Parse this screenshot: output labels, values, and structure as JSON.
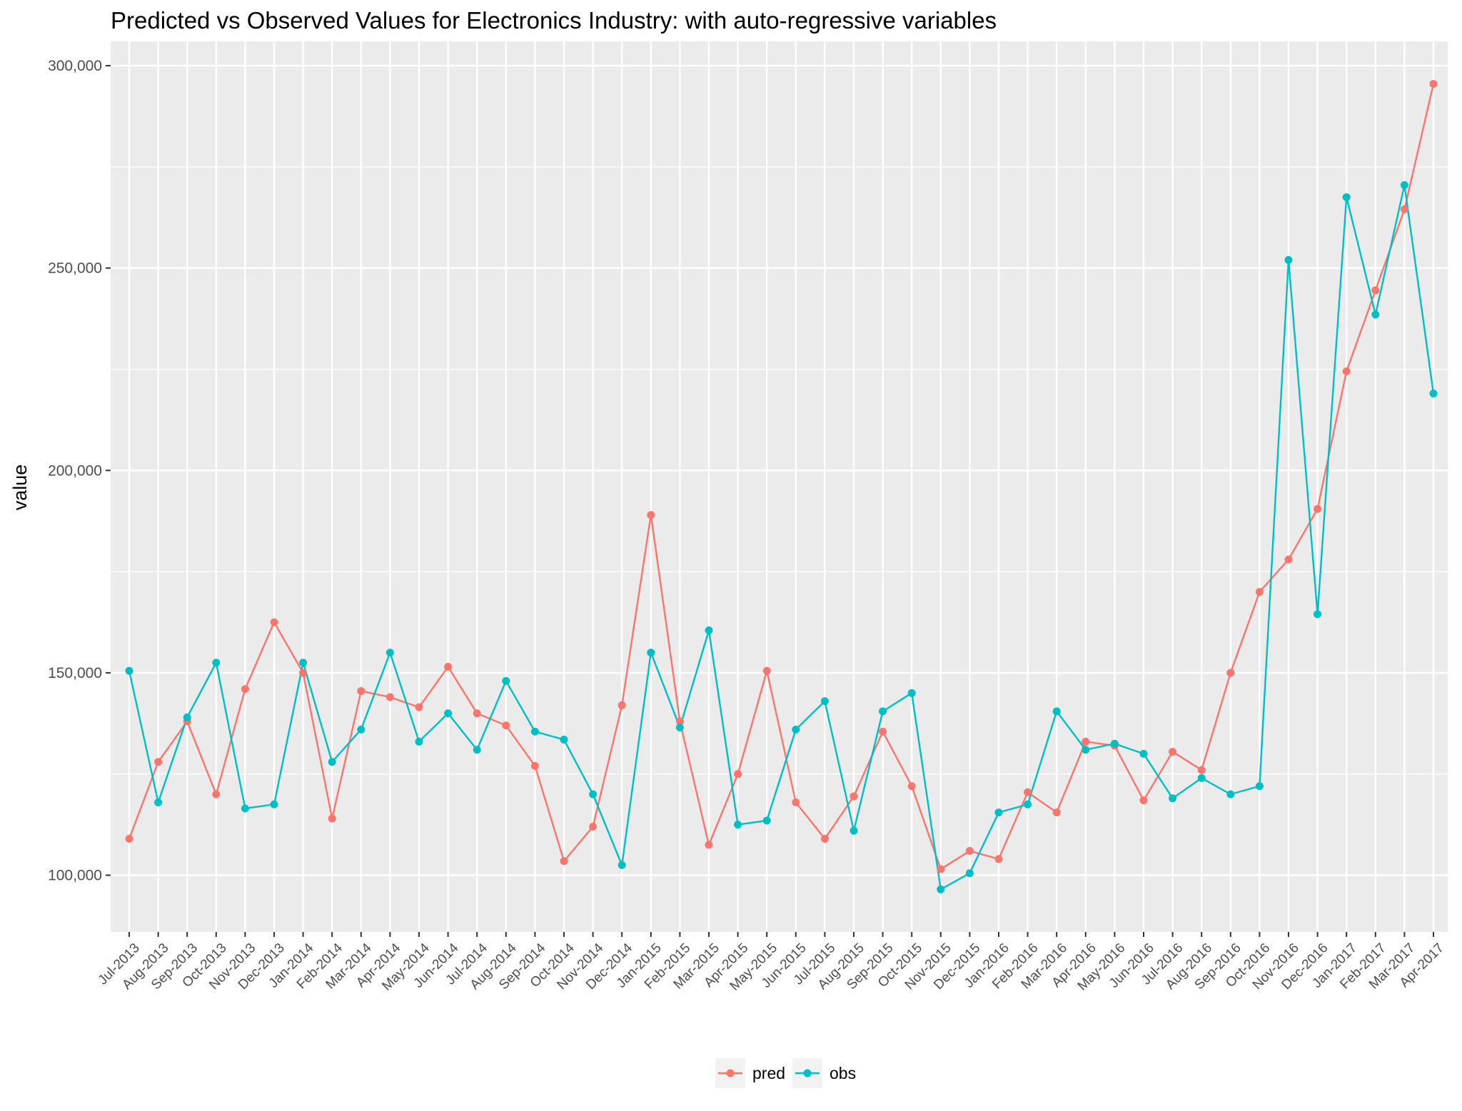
{
  "chart_data": {
    "type": "line",
    "title": "Predicted vs Observed Values for Electronics Industry: with auto-regressive variables",
    "xlabel": "",
    "ylabel": "value",
    "ylim": [
      86000,
      306000
    ],
    "yticks": [
      100000,
      150000,
      200000,
      250000,
      300000
    ],
    "ytick_labels": [
      "100,000",
      "150,000",
      "200,000",
      "250,000",
      "300,000"
    ],
    "grid": true,
    "legend_position": "bottom",
    "categories": [
      "Jul-2013",
      "Aug-2013",
      "Sep-2013",
      "Oct-2013",
      "Nov-2013",
      "Dec-2013",
      "Jan-2014",
      "Feb-2014",
      "Mar-2014",
      "Apr-2014",
      "May-2014",
      "Jun-2014",
      "Jul-2014",
      "Aug-2014",
      "Sep-2014",
      "Oct-2014",
      "Nov-2014",
      "Dec-2014",
      "Jan-2015",
      "Feb-2015",
      "Mar-2015",
      "Apr-2015",
      "May-2015",
      "Jun-2015",
      "Jul-2015",
      "Aug-2015",
      "Sep-2015",
      "Oct-2015",
      "Nov-2015",
      "Dec-2015",
      "Jan-2016",
      "Feb-2016",
      "Mar-2016",
      "Apr-2016",
      "May-2016",
      "Jun-2016",
      "Jul-2016",
      "Aug-2016",
      "Sep-2016",
      "Oct-2016",
      "Nov-2016",
      "Dec-2016",
      "Jan-2017",
      "Feb-2017",
      "Mar-2017",
      "Apr-2017"
    ],
    "series": [
      {
        "name": "pred",
        "color": "#F8766D",
        "values": [
          109000,
          128000,
          138000,
          120000,
          146000,
          162500,
          150000,
          114000,
          145500,
          144000,
          141500,
          151500,
          140000,
          137000,
          127000,
          103500,
          112000,
          142000,
          189000,
          138000,
          107500,
          125000,
          150500,
          118000,
          109000,
          119500,
          135500,
          122000,
          101500,
          106000,
          104000,
          120500,
          115500,
          133000,
          132000,
          118500,
          130500,
          126000,
          150000,
          170000,
          178000,
          190500,
          224500,
          244500,
          264500,
          295500
        ]
      },
      {
        "name": "obs",
        "color": "#00BFC4",
        "values": [
          150500,
          118000,
          139000,
          152500,
          116500,
          117500,
          152500,
          128000,
          136000,
          155000,
          133000,
          140000,
          131000,
          148000,
          135500,
          133500,
          120000,
          102500,
          155000,
          136500,
          160500,
          112500,
          113500,
          136000,
          143000,
          111000,
          140500,
          145000,
          96500,
          100500,
          115500,
          117500,
          140500,
          131000,
          132500,
          130000,
          119000,
          124000,
          120000,
          122000,
          252000,
          164500,
          267500,
          238500,
          270500,
          219000
        ]
      }
    ]
  }
}
